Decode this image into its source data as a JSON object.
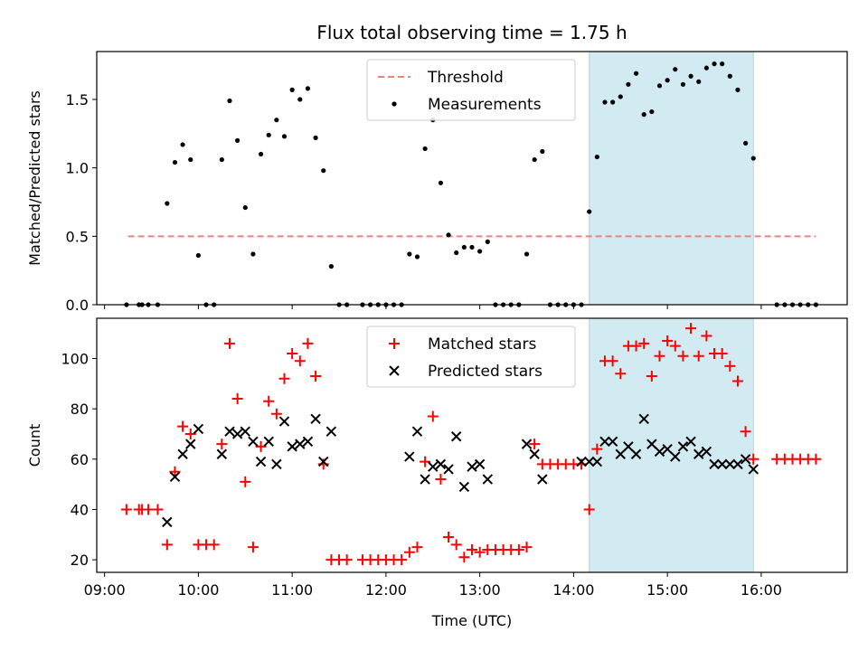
{
  "figure": {
    "title": "Flux total observing time = 1.75 h",
    "xlabel": "Time (UTC)"
  },
  "colors": {
    "threshold": "#f08080",
    "measurements": "#000000",
    "matched": "#ff0000",
    "predicted": "#000000",
    "span": "#add8e6"
  },
  "chart_data": [
    {
      "type": "scatter",
      "panel": "top",
      "ylabel": "Matched/Predicted stars",
      "xlim": [
        "08:55",
        "16:55"
      ],
      "ylim": [
        0,
        1.85
      ],
      "yticks": [
        0.0,
        0.5,
        1.0,
        1.5
      ],
      "ytick_labels": [
        "0.0",
        "0.5",
        "1.0",
        "1.5"
      ],
      "highlight_span": [
        "14:10",
        "15:55"
      ],
      "threshold": {
        "name": "Threshold",
        "y": 0.5,
        "x_start": "09:15",
        "x_end": "16:35"
      },
      "legend": {
        "placement": "top-center",
        "entries": [
          "Threshold",
          "Measurements"
        ]
      },
      "series": [
        {
          "name": "Measurements",
          "marker": "dot",
          "points": [
            [
              "09:14",
              0
            ],
            [
              "09:22",
              0
            ],
            [
              "09:24",
              0
            ],
            [
              "09:28",
              0
            ],
            [
              "09:34",
              0
            ],
            [
              "09:40",
              0.74
            ],
            [
              "09:45",
              1.04
            ],
            [
              "09:50",
              1.17
            ],
            [
              "09:55",
              1.06
            ],
            [
              "10:00",
              0.36
            ],
            [
              "10:05",
              0
            ],
            [
              "10:10",
              0
            ],
            [
              "10:15",
              1.06
            ],
            [
              "10:20",
              1.49
            ],
            [
              "10:25",
              1.2
            ],
            [
              "10:30",
              0.71
            ],
            [
              "10:35",
              0.37
            ],
            [
              "10:40",
              1.1
            ],
            [
              "10:45",
              1.24
            ],
            [
              "10:50",
              1.35
            ],
            [
              "10:55",
              1.23
            ],
            [
              "11:00",
              1.57
            ],
            [
              "11:05",
              1.5
            ],
            [
              "11:10",
              1.58
            ],
            [
              "11:15",
              1.22
            ],
            [
              "11:20",
              0.98
            ],
            [
              "11:25",
              0.28
            ],
            [
              "11:30",
              0
            ],
            [
              "11:35",
              0
            ],
            [
              "11:45",
              0
            ],
            [
              "11:50",
              0
            ],
            [
              "11:55",
              0
            ],
            [
              "12:00",
              0
            ],
            [
              "12:05",
              0
            ],
            [
              "12:10",
              0
            ],
            [
              "12:15",
              0.37
            ],
            [
              "12:20",
              0.35
            ],
            [
              "12:25",
              1.14
            ],
            [
              "12:30",
              1.35
            ],
            [
              "12:35",
              0.89
            ],
            [
              "12:40",
              0.51
            ],
            [
              "12:45",
              0.38
            ],
            [
              "12:50",
              0.42
            ],
            [
              "12:55",
              0.42
            ],
            [
              "13:00",
              0.39
            ],
            [
              "13:05",
              0.46
            ],
            [
              "13:10",
              0
            ],
            [
              "13:15",
              0
            ],
            [
              "13:20",
              0
            ],
            [
              "13:25",
              0
            ],
            [
              "13:30",
              0.37
            ],
            [
              "13:35",
              1.06
            ],
            [
              "13:40",
              1.12
            ],
            [
              "13:45",
              0
            ],
            [
              "13:50",
              0
            ],
            [
              "13:55",
              0
            ],
            [
              "14:00",
              0
            ],
            [
              "14:05",
              0
            ],
            [
              "14:10",
              0.68
            ],
            [
              "14:15",
              1.08
            ],
            [
              "14:20",
              1.48
            ],
            [
              "14:25",
              1.48
            ],
            [
              "14:30",
              1.52
            ],
            [
              "14:35",
              1.61
            ],
            [
              "14:40",
              1.69
            ],
            [
              "14:45",
              1.39
            ],
            [
              "14:50",
              1.41
            ],
            [
              "14:55",
              1.6
            ],
            [
              "15:00",
              1.64
            ],
            [
              "15:05",
              1.72
            ],
            [
              "15:10",
              1.61
            ],
            [
              "15:15",
              1.67
            ],
            [
              "15:20",
              1.63
            ],
            [
              "15:25",
              1.73
            ],
            [
              "15:30",
              1.76
            ],
            [
              "15:35",
              1.76
            ],
            [
              "15:40",
              1.67
            ],
            [
              "15:45",
              1.57
            ],
            [
              "15:50",
              1.18
            ],
            [
              "15:55",
              1.07
            ],
            [
              "16:10",
              0
            ],
            [
              "16:15",
              0
            ],
            [
              "16:20",
              0
            ],
            [
              "16:25",
              0
            ],
            [
              "16:30",
              0
            ],
            [
              "16:35",
              0
            ]
          ]
        }
      ]
    },
    {
      "type": "scatter",
      "panel": "bottom",
      "ylabel": "Count",
      "xlim": [
        "08:55",
        "16:55"
      ],
      "ylim": [
        15,
        116
      ],
      "yticks": [
        20,
        40,
        60,
        80,
        100
      ],
      "ytick_labels": [
        "20",
        "40",
        "60",
        "80",
        "100"
      ],
      "xticks": [
        "09:00",
        "10:00",
        "11:00",
        "12:00",
        "13:00",
        "14:00",
        "15:00",
        "16:00"
      ],
      "xtick_labels": [
        "09:00",
        "10:00",
        "11:00",
        "12:00",
        "13:00",
        "14:00",
        "15:00",
        "16:00"
      ],
      "highlight_span": [
        "14:10",
        "15:55"
      ],
      "legend": {
        "placement": "top-center",
        "entries": [
          "Matched stars",
          "Predicted stars"
        ]
      },
      "series": [
        {
          "name": "Matched stars",
          "marker": "plus",
          "points": [
            [
              "09:14",
              40
            ],
            [
              "09:22",
              40
            ],
            [
              "09:24",
              40
            ],
            [
              "09:28",
              40
            ],
            [
              "09:34",
              40
            ],
            [
              "09:40",
              26
            ],
            [
              "09:45",
              55
            ],
            [
              "09:50",
              73
            ],
            [
              "09:55",
              70
            ],
            [
              "10:00",
              26
            ],
            [
              "10:05",
              26
            ],
            [
              "10:10",
              26
            ],
            [
              "10:15",
              66
            ],
            [
              "10:20",
              106
            ],
            [
              "10:25",
              84
            ],
            [
              "10:30",
              51
            ],
            [
              "10:35",
              25
            ],
            [
              "10:40",
              65
            ],
            [
              "10:45",
              83
            ],
            [
              "10:50",
              78
            ],
            [
              "10:55",
              92
            ],
            [
              "11:00",
              102
            ],
            [
              "11:05",
              99
            ],
            [
              "11:10",
              106
            ],
            [
              "11:15",
              93
            ],
            [
              "11:20",
              58
            ],
            [
              "11:25",
              20
            ],
            [
              "11:30",
              20
            ],
            [
              "11:35",
              20
            ],
            [
              "11:45",
              20
            ],
            [
              "11:50",
              20
            ],
            [
              "11:55",
              20
            ],
            [
              "12:00",
              20
            ],
            [
              "12:05",
              20
            ],
            [
              "12:10",
              20
            ],
            [
              "12:15",
              23
            ],
            [
              "12:20",
              25
            ],
            [
              "12:25",
              59
            ],
            [
              "12:30",
              77
            ],
            [
              "12:35",
              52
            ],
            [
              "12:40",
              29
            ],
            [
              "12:45",
              26
            ],
            [
              "12:50",
              21
            ],
            [
              "12:55",
              24
            ],
            [
              "13:00",
              23
            ],
            [
              "13:05",
              24
            ],
            [
              "13:10",
              24
            ],
            [
              "13:15",
              24
            ],
            [
              "13:20",
              24
            ],
            [
              "13:25",
              24
            ],
            [
              "13:30",
              25
            ],
            [
              "13:35",
              66
            ],
            [
              "13:40",
              58
            ],
            [
              "13:45",
              58
            ],
            [
              "13:50",
              58
            ],
            [
              "13:55",
              58
            ],
            [
              "14:00",
              58
            ],
            [
              "14:05",
              58
            ],
            [
              "14:10",
              40
            ],
            [
              "14:15",
              64
            ],
            [
              "14:20",
              99
            ],
            [
              "14:25",
              99
            ],
            [
              "14:30",
              94
            ],
            [
              "14:35",
              105
            ],
            [
              "14:40",
              105
            ],
            [
              "14:45",
              106
            ],
            [
              "14:50",
              93
            ],
            [
              "14:55",
              101
            ],
            [
              "15:00",
              107
            ],
            [
              "15:05",
              105
            ],
            [
              "15:10",
              101
            ],
            [
              "15:15",
              112
            ],
            [
              "15:20",
              101
            ],
            [
              "15:25",
              109
            ],
            [
              "15:30",
              102
            ],
            [
              "15:35",
              102
            ],
            [
              "15:40",
              97
            ],
            [
              "15:45",
              91
            ],
            [
              "15:50",
              71
            ],
            [
              "15:55",
              60
            ],
            [
              "16:10",
              60
            ],
            [
              "16:15",
              60
            ],
            [
              "16:20",
              60
            ],
            [
              "16:25",
              60
            ],
            [
              "16:30",
              60
            ],
            [
              "16:35",
              60
            ]
          ]
        },
        {
          "name": "Predicted stars",
          "marker": "x",
          "points": [
            [
              "09:40",
              35
            ],
            [
              "09:45",
              53
            ],
            [
              "09:50",
              62
            ],
            [
              "09:55",
              66
            ],
            [
              "10:00",
              72
            ],
            [
              "10:15",
              62
            ],
            [
              "10:20",
              71
            ],
            [
              "10:25",
              70
            ],
            [
              "10:30",
              71
            ],
            [
              "10:35",
              67
            ],
            [
              "10:40",
              59
            ],
            [
              "10:45",
              67
            ],
            [
              "10:50",
              58
            ],
            [
              "10:55",
              75
            ],
            [
              "11:00",
              65
            ],
            [
              "11:05",
              66
            ],
            [
              "11:10",
              67
            ],
            [
              "11:15",
              76
            ],
            [
              "11:20",
              59
            ],
            [
              "11:25",
              71
            ],
            [
              "12:15",
              61
            ],
            [
              "12:20",
              71
            ],
            [
              "12:25",
              52
            ],
            [
              "12:30",
              57
            ],
            [
              "12:35",
              58
            ],
            [
              "12:40",
              56
            ],
            [
              "12:45",
              69
            ],
            [
              "12:50",
              49
            ],
            [
              "12:55",
              57
            ],
            [
              "13:00",
              58
            ],
            [
              "13:05",
              52
            ],
            [
              "13:30",
              66
            ],
            [
              "13:35",
              62
            ],
            [
              "13:40",
              52
            ],
            [
              "14:05",
              59
            ],
            [
              "14:10",
              59
            ],
            [
              "14:15",
              59
            ],
            [
              "14:20",
              67
            ],
            [
              "14:25",
              67
            ],
            [
              "14:30",
              62
            ],
            [
              "14:35",
              65
            ],
            [
              "14:40",
              62
            ],
            [
              "14:45",
              76
            ],
            [
              "14:50",
              66
            ],
            [
              "14:55",
              63
            ],
            [
              "15:00",
              64
            ],
            [
              "15:05",
              61
            ],
            [
              "15:10",
              65
            ],
            [
              "15:15",
              67
            ],
            [
              "15:20",
              62
            ],
            [
              "15:25",
              63
            ],
            [
              "15:30",
              58
            ],
            [
              "15:35",
              58
            ],
            [
              "15:40",
              58
            ],
            [
              "15:45",
              58
            ],
            [
              "15:50",
              60
            ],
            [
              "15:55",
              56
            ]
          ]
        }
      ]
    }
  ]
}
